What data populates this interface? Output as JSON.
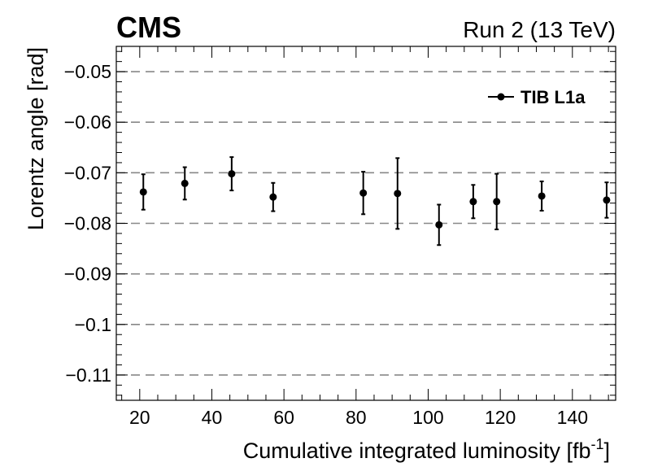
{
  "header": {
    "experiment": "CMS",
    "run_label": "Run 2 (13 TeV)"
  },
  "chart_data": {
    "type": "scatter",
    "title": "",
    "xlabel_main": "Cumulative integrated luminosity [fb",
    "xlabel_sup": "-1",
    "xlabel_tail": "]",
    "ylabel": "Lorentz angle [rad]",
    "xlim": [
      13.5,
      152
    ],
    "ylim": [
      -0.115,
      -0.045
    ],
    "x_ticks": [
      20,
      40,
      60,
      80,
      100,
      120,
      140
    ],
    "x_tick_labels": [
      "20",
      "40",
      "60",
      "80",
      "100",
      "120",
      "140"
    ],
    "y_ticks": [
      -0.05,
      -0.06,
      -0.07,
      -0.08,
      -0.09,
      -0.1,
      -0.11
    ],
    "y_tick_labels": [
      "−0.05",
      "−0.06",
      "−0.07",
      "−0.08",
      "−0.09",
      "−0.1",
      "−0.11"
    ],
    "grid": "horizontal dashed at major y ticks",
    "legend_position": "top-right",
    "series": [
      {
        "name": "TIB L1a",
        "color": "#000000",
        "x": [
          21,
          32.5,
          45.5,
          57,
          82,
          91.5,
          103,
          112.5,
          119,
          131.5,
          149.5
        ],
        "y": [
          -0.0738,
          -0.0721,
          -0.0702,
          -0.0748,
          -0.074,
          -0.0741,
          -0.0803,
          -0.0757,
          -0.0757,
          -0.0746,
          -0.0754
        ],
        "err": [
          0.0035,
          0.0032,
          0.0033,
          0.0028,
          0.0042,
          0.007,
          0.004,
          0.0033,
          0.0055,
          0.0029,
          0.0035
        ]
      }
    ]
  }
}
